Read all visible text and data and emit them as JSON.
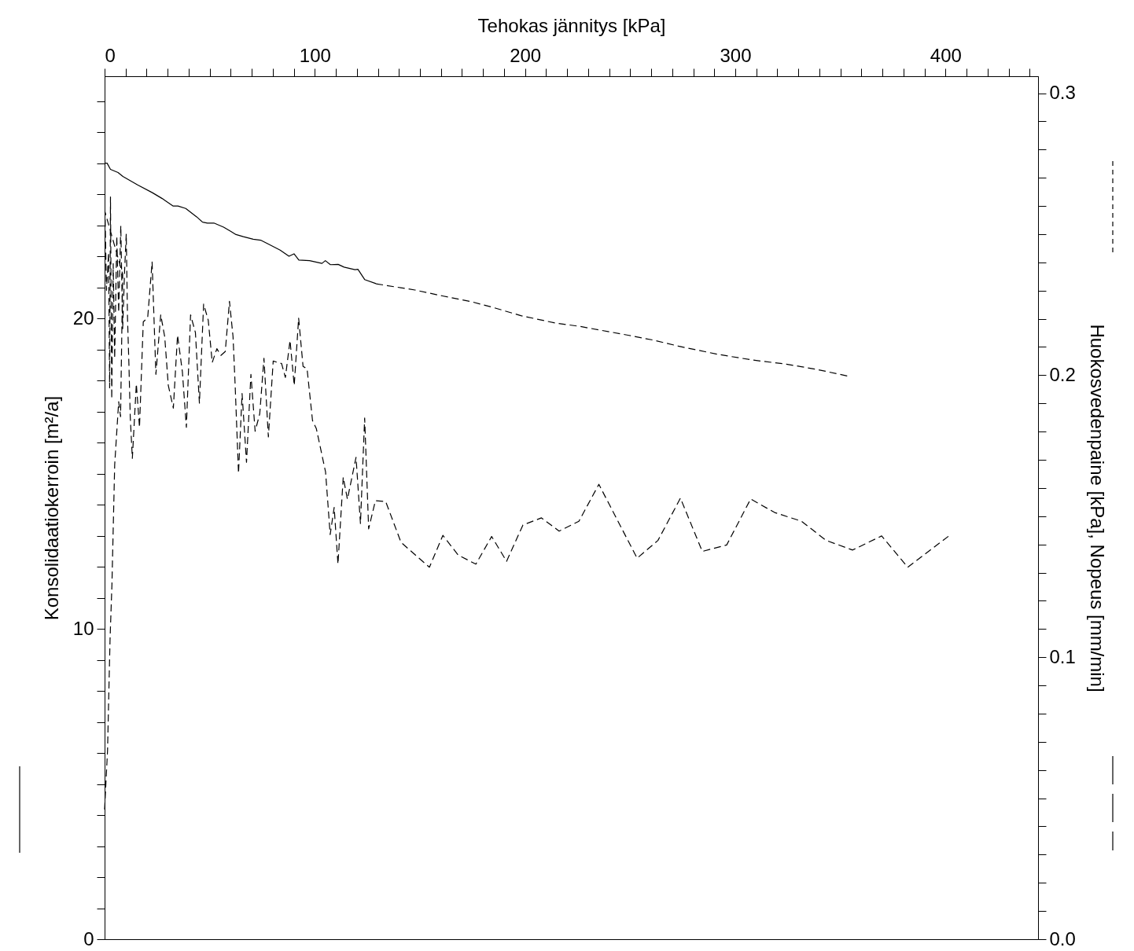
{
  "chart_data": {
    "type": "line",
    "xlabel": "Tehokas jännitys [kPa]",
    "ylabel": "Konsolidaatiokerroin [m²/a]",
    "y2label": "Huokosvedenpaine [kPa], Nopeus [mm/min]",
    "grid": false,
    "xlim": [
      0,
      444
    ],
    "xticks": [
      0,
      {
        "value": 10,
        "label": null
      },
      {
        "value": 20,
        "label": null
      },
      {
        "value": 30,
        "label": null
      },
      {
        "value": 40,
        "label": null
      },
      {
        "value": 50,
        "label": null
      },
      {
        "value": 60,
        "label": null
      },
      {
        "value": 70,
        "label": null
      },
      {
        "value": 80,
        "label": null
      },
      {
        "value": 90,
        "label": null
      },
      100,
      {
        "value": 110,
        "label": null
      },
      {
        "value": 120,
        "label": null
      },
      {
        "value": 130,
        "label": null
      },
      {
        "value": 140,
        "label": null
      },
      {
        "value": 150,
        "label": null
      },
      {
        "value": 160,
        "label": null
      },
      {
        "value": 170,
        "label": null
      },
      {
        "value": 180,
        "label": null
      },
      {
        "value": 190,
        "label": null
      },
      200,
      {
        "value": 210,
        "label": null
      },
      {
        "value": 220,
        "label": null
      },
      {
        "value": 230,
        "label": null
      },
      {
        "value": 240,
        "label": null
      },
      {
        "value": 250,
        "label": null
      },
      {
        "value": 260,
        "label": null
      },
      {
        "value": 270,
        "label": null
      },
      {
        "value": 280,
        "label": null
      },
      {
        "value": 290,
        "label": null
      },
      300,
      {
        "value": 310,
        "label": null
      },
      {
        "value": 320,
        "label": null
      },
      {
        "value": 330,
        "label": null
      },
      {
        "value": 340,
        "label": null
      },
      {
        "value": 350,
        "label": null
      },
      {
        "value": 360,
        "label": null
      },
      {
        "value": 370,
        "label": null
      },
      {
        "value": 380,
        "label": null
      },
      {
        "value": 390,
        "label": null
      },
      400,
      {
        "value": 410,
        "label": null
      },
      {
        "value": 420,
        "label": null
      },
      {
        "value": 430,
        "label": null
      },
      {
        "value": 440,
        "label": null
      }
    ],
    "ylim": [
      0,
      27.8
    ],
    "yticks": [
      0,
      {
        "value": 1,
        "label": null
      },
      {
        "value": 2,
        "label": null
      },
      {
        "value": 3,
        "label": null
      },
      {
        "value": 4,
        "label": null
      },
      {
        "value": 5,
        "label": null
      },
      {
        "value": 6,
        "label": null
      },
      {
        "value": 7,
        "label": null
      },
      {
        "value": 8,
        "label": null
      },
      {
        "value": 9,
        "label": null
      },
      10,
      {
        "value": 11,
        "label": null
      },
      {
        "value": 12,
        "label": null
      },
      {
        "value": 13,
        "label": null
      },
      {
        "value": 14,
        "label": null
      },
      {
        "value": 15,
        "label": null
      },
      {
        "value": 16,
        "label": null
      },
      {
        "value": 17,
        "label": null
      },
      {
        "value": 18,
        "label": null
      },
      {
        "value": 19,
        "label": null
      },
      20,
      {
        "value": 21,
        "label": null
      },
      {
        "value": 22,
        "label": null
      },
      {
        "value": 23,
        "label": null
      },
      {
        "value": 24,
        "label": null
      },
      {
        "value": 25,
        "label": null
      },
      {
        "value": 26,
        "label": null
      },
      {
        "value": 27,
        "label": null
      }
    ],
    "y2lim": [
      0,
      0.306
    ],
    "y2ticks": [
      {
        "value": 0,
        "label": "0.0"
      },
      {
        "value": 0.01,
        "label": null
      },
      {
        "value": 0.02,
        "label": null
      },
      {
        "value": 0.03,
        "label": null
      },
      {
        "value": 0.04,
        "label": null
      },
      {
        "value": 0.05,
        "label": null
      },
      {
        "value": 0.06,
        "label": null
      },
      {
        "value": 0.07,
        "label": null
      },
      {
        "value": 0.08,
        "label": null
      },
      {
        "value": 0.09,
        "label": null
      },
      0.1,
      {
        "value": 0.11,
        "label": null
      },
      {
        "value": 0.12,
        "label": null
      },
      {
        "value": 0.13,
        "label": null
      },
      {
        "value": 0.14,
        "label": null
      },
      {
        "value": 0.15,
        "label": null
      },
      {
        "value": 0.16,
        "label": null
      },
      {
        "value": 0.17,
        "label": null
      },
      {
        "value": 0.18,
        "label": null
      },
      {
        "value": 0.19,
        "label": null
      },
      0.2,
      {
        "value": 0.21,
        "label": null
      },
      {
        "value": 0.22,
        "label": null
      },
      {
        "value": 0.23,
        "label": null
      },
      {
        "value": 0.24,
        "label": null
      },
      {
        "value": 0.25,
        "label": null
      },
      {
        "value": 0.26,
        "label": null
      },
      {
        "value": 0.27,
        "label": null
      },
      {
        "value": 0.28,
        "label": null
      },
      {
        "value": 0.29,
        "label": null
      },
      0.3
    ],
    "series": [
      {
        "color": "#000000",
        "line_style": "solid",
        "x": [
          0,
          1.2,
          2.8,
          6.4,
          8.7,
          15.7,
          22.7,
          27.4,
          32.5,
          34.9,
          38.6,
          43.8,
          46.6,
          48.9,
          52,
          56.6,
          60.1,
          62.5,
          66,
          70.7,
          74.2,
          77.7,
          83.5,
          87.7,
          90.1,
          92.4,
          97.5,
          103.4,
          105,
          107.4,
          111.1,
          113.9,
          119.1,
          120.5,
          123.7,
          129.1
        ],
        "values": [
          25.0,
          25.0,
          24.8,
          24.7,
          24.57,
          24.3,
          24.05,
          23.86,
          23.62,
          23.62,
          23.54,
          23.27,
          23.1,
          23.07,
          23.07,
          22.94,
          22.8,
          22.7,
          22.63,
          22.55,
          22.52,
          22.4,
          22.2,
          22.0,
          22.08,
          21.88,
          21.86,
          21.77,
          21.86,
          21.73,
          21.74,
          21.65,
          21.57,
          21.58,
          21.25,
          21.12
        ]
      },
      {
        "color": "#000000",
        "line_style": "dashed",
        "axis": "y2",
        "x": [
          129.1,
          147.6,
          160.7,
          174.7,
          184,
          198,
          214.4,
          226,
          249.5,
          261.2,
          272.9,
          291.6,
          308,
          324.3,
          338.4,
          354.7
        ],
        "values": [
          0.2324,
          0.2302,
          0.2281,
          0.226,
          0.2242,
          0.2211,
          0.2185,
          0.2173,
          0.2141,
          0.2124,
          0.2103,
          0.2074,
          0.2054,
          0.2039,
          0.2021,
          0.1995
        ]
      },
      {
        "color": "#000000",
        "line_style": "dashed",
        "axis": "y2",
        "x": [
          0,
          1.4,
          2.0,
          2.6,
          3.5,
          4.8,
          6.7,
          7.6,
          8.6,
          0.2,
          0.9,
          1.9,
          2.4,
          2.8,
          3.4,
          4.1,
          4.8,
          5.8,
          6.7,
          7.7,
          8.6,
          9.5,
          10.3,
          10.9,
          11.6,
          12.2,
          13.2,
          15.1,
          16.6,
          18.4,
          20.5,
          22.6,
          24.4,
          26.7,
          28.6,
          30.3,
          32.7,
          34.7,
          37.0,
          38.9,
          40.9,
          43.2,
          45.1,
          47.1,
          49.3,
          51.2,
          53.4,
          55.3,
          57.4,
          59.4,
          61.1,
          62.1,
          63.7,
          65.4,
          67.5,
          69.6,
          71.6,
          73.8,
          75.8,
          77.9,
          80.2,
          84.2,
          86.0,
          88.2,
          90.2,
          92.3,
          94.4,
          96.3,
          98.9,
          100.7,
          105.1,
          107.3,
          109.2,
          111.0,
          113.5,
          115.5,
          119.6,
          121.7,
          123.7,
          125.6,
          128.8,
          133.7,
          141.0,
          154.5,
          160.9,
          168.2,
          176.6,
          184.1,
          191.2,
          199.0,
          207.8,
          216.2,
          225.6,
          235.1,
          253.3,
          263.2,
          273.9,
          284.3,
          295.9,
          307.3,
          318.7,
          331.5,
          343.2,
          355.8,
          369.6,
          382.0,
          401.6
        ],
        "values": [
          0.046,
          0.0669,
          0.0869,
          0.1064,
          0.1259,
          0.1682,
          0.1906,
          0.1853,
          0.2358,
          0.2579,
          0.2301,
          0.2435,
          0.1955,
          0.2632,
          0.1916,
          0.2396,
          0.206,
          0.2493,
          0.2223,
          0.253,
          0.2165,
          0.2368,
          0.2501,
          0.2204,
          0.2031,
          0.1853,
          0.1705,
          0.1969,
          0.1815,
          0.2189,
          0.2204,
          0.2401,
          0.2003,
          0.2214,
          0.2136,
          0.1964,
          0.1883,
          0.2142,
          0.2012,
          0.1815,
          0.2214,
          0.2151,
          0.1901,
          0.2252,
          0.2195,
          0.2045,
          0.2094,
          0.207,
          0.2084,
          0.2262,
          0.2136,
          0.1964,
          0.1652,
          0.1935,
          0.1691,
          0.2003,
          0.1801,
          0.1863,
          0.206,
          0.1781,
          0.205,
          0.2041,
          0.1992,
          0.2123,
          0.1964,
          0.2202,
          0.2031,
          0.2023,
          0.1839,
          0.1811,
          0.1657,
          0.1435,
          0.1531,
          0.133,
          0.1638,
          0.156,
          0.1709,
          0.1474,
          0.1848,
          0.1455,
          0.1555,
          0.1552,
          0.1407,
          0.1319,
          0.1432,
          0.1362,
          0.133,
          0.1428,
          0.134,
          0.1469,
          0.1494,
          0.1447,
          0.1482,
          0.1613,
          0.1351,
          0.1414,
          0.1564,
          0.1375,
          0.1398,
          0.1561,
          0.1513,
          0.1482,
          0.1414,
          0.138,
          0.143,
          0.1319,
          0.143
        ]
      }
    ]
  }
}
